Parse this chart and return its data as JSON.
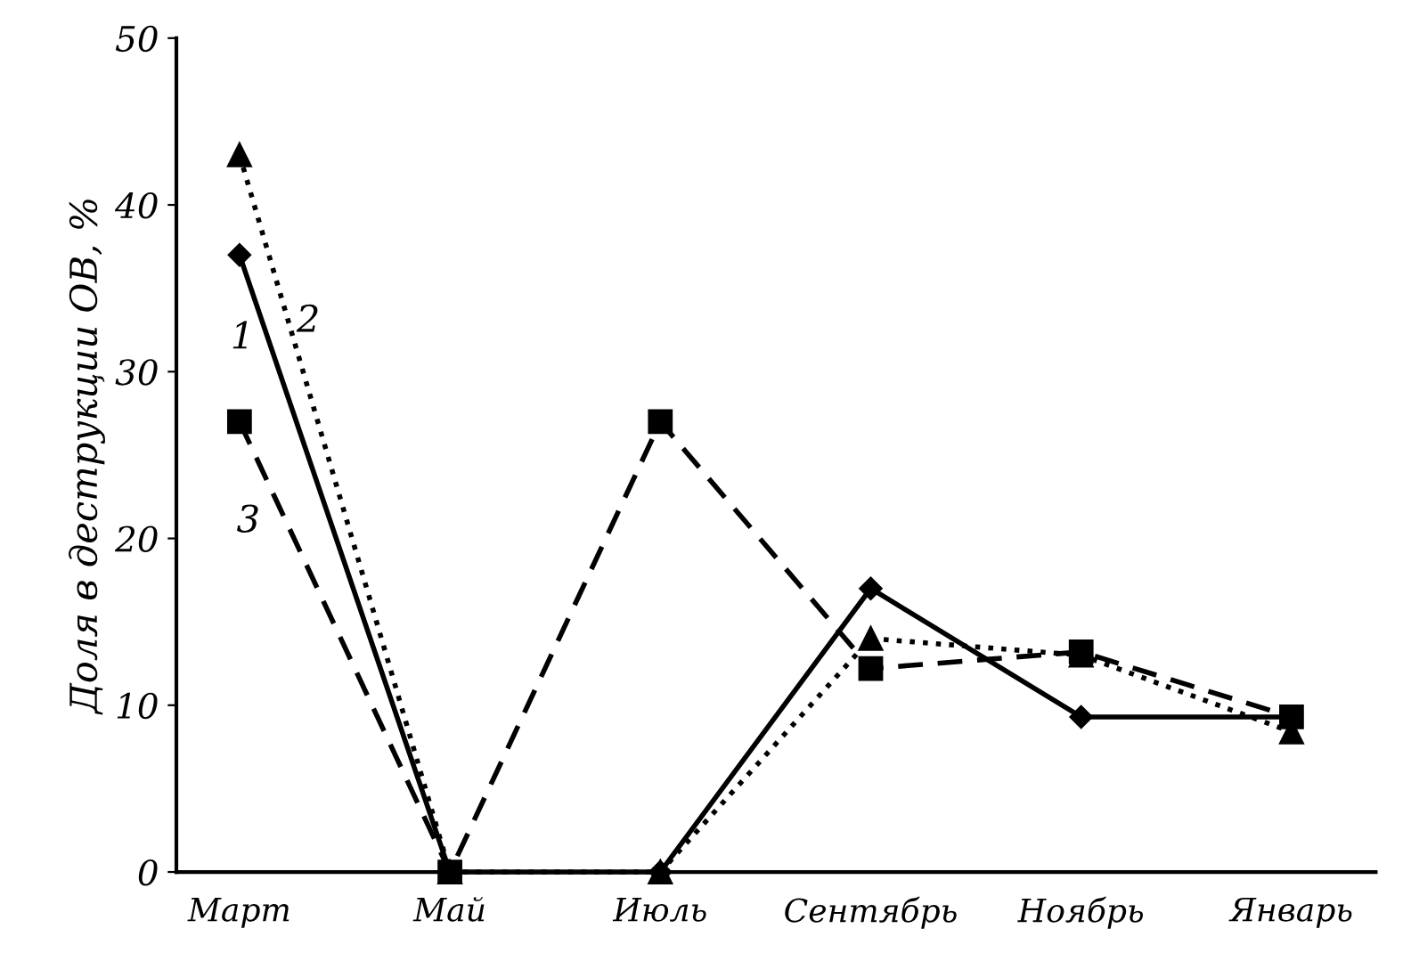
{
  "chart_data": {
    "type": "line",
    "ylabel": "Доля в деструкции ОВ, %",
    "categories": [
      "Март",
      "Май",
      "Июль",
      "Сентябрь",
      "Ноябрь",
      "Январь"
    ],
    "series": [
      {
        "color": "#000000",
        "marker": "diamond",
        "line_style": "solid",
        "values": [
          37,
          0,
          0,
          17,
          9.3,
          9.3
        ]
      },
      {
        "color": "#000000",
        "marker": "triangle",
        "line_style": "dotted",
        "values": [
          43,
          0,
          0,
          14,
          13,
          8.4
        ]
      },
      {
        "color": "#000000",
        "marker": "square",
        "line_style": "dashed",
        "values": [
          27,
          0,
          27,
          12.2,
          13.2,
          9.3
        ]
      }
    ],
    "annotations": [
      "1",
      "2",
      "3"
    ],
    "ylim": [
      0,
      50
    ],
    "yticks": [
      0,
      10,
      20,
      30,
      40,
      50
    ],
    "grid": false,
    "legend": false
  }
}
